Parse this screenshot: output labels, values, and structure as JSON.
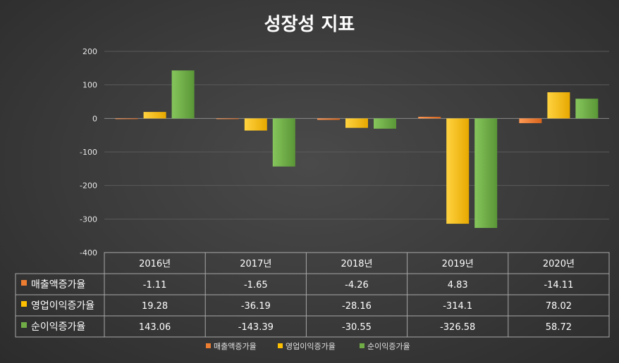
{
  "chart_data": {
    "type": "bar",
    "title": "성장성 지표",
    "categories": [
      "2016년",
      "2017년",
      "2018년",
      "2019년",
      "2020년"
    ],
    "ylim": [
      -400,
      200
    ],
    "yticks": [
      200,
      100,
      0,
      -100,
      -200,
      -300,
      -400
    ],
    "grid": true,
    "legend_position": "bottom",
    "series": [
      {
        "name": "매출액증가율",
        "color": "#ED7D31",
        "values": [
          "-1.11",
          "-1.65",
          "-4.26",
          "4.83",
          "-14.11"
        ]
      },
      {
        "name": "영업이익증가율",
        "color": "#FFC000",
        "values": [
          "19.28",
          "-36.19",
          "-28.16",
          "-314.1",
          "78.02"
        ]
      },
      {
        "name": "순이익증가율",
        "color": "#70AD47",
        "values": [
          "143.06",
          "-143.39",
          "-30.55",
          "-326.58",
          "58.72"
        ]
      }
    ]
  }
}
